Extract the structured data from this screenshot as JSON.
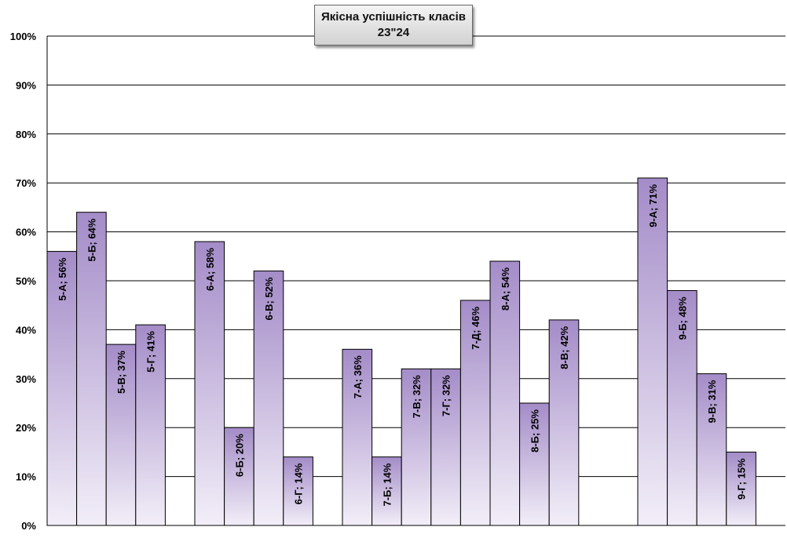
{
  "chart_data": {
    "type": "bar",
    "title": "Якісна успішність класів",
    "subtitle": "23\"24",
    "ylim": [
      0,
      100
    ],
    "yticks": [
      "0%",
      "10%",
      "20%",
      "30%",
      "40%",
      "50%",
      "60%",
      "70%",
      "80%",
      "90%",
      "100%"
    ],
    "grid": true,
    "bar_color_top": "#a48cc8",
    "bar_color_bottom": "#f2eef8",
    "groups": [
      [
        {
          "label": "5-А; 56%",
          "value": 56
        },
        {
          "label": "5-Б; 64%",
          "value": 64
        },
        {
          "label": "5-В; 37%",
          "value": 37
        },
        {
          "label": "5-Г; 41%",
          "value": 41
        }
      ],
      [
        {
          "label": "6-А; 58%",
          "value": 58
        },
        {
          "label": "6-Б; 20%",
          "value": 20
        },
        {
          "label": "6-В; 52%",
          "value": 52
        },
        {
          "label": "6-Г; 14%",
          "value": 14
        }
      ],
      [
        {
          "label": "7-А; 36%",
          "value": 36
        },
        {
          "label": "7-Б; 14%",
          "value": 14
        },
        {
          "label": "7-В; 32%",
          "value": 32
        },
        {
          "label": "7-Г; 32%",
          "value": 32
        },
        {
          "label": "7-Д; 46%",
          "value": 46
        }
      ],
      [
        {
          "label": "8-А; 54%",
          "value": 54
        },
        {
          "label": "8-Б; 25%",
          "value": 25
        },
        {
          "label": "8-В; 42%",
          "value": 42
        }
      ],
      [
        {
          "label": "9-А; 71%",
          "value": 71
        },
        {
          "label": "9-Б; 48%",
          "value": 48
        },
        {
          "label": "9-В; 31%",
          "value": 31
        },
        {
          "label": "9-Г; 15%",
          "value": 15
        }
      ]
    ]
  }
}
